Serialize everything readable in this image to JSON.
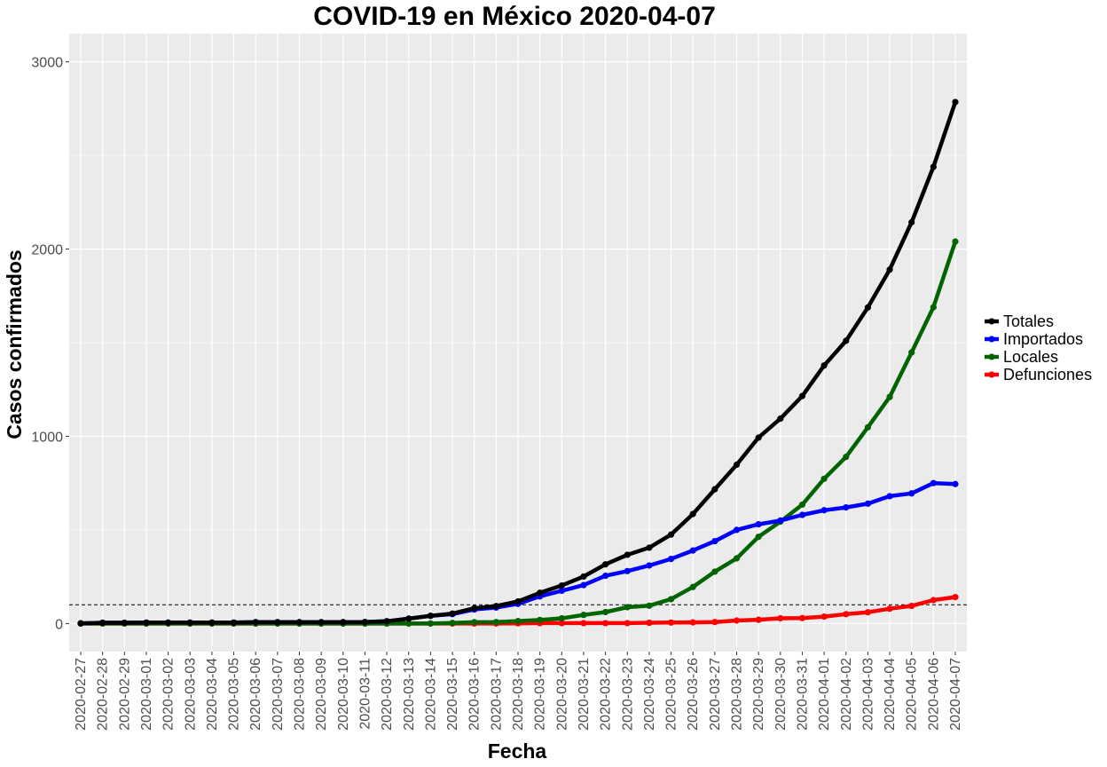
{
  "chart_data": {
    "type": "line",
    "title": "COVID-19 en México 2020-04-07",
    "xlabel": "Fecha",
    "ylabel": "Casos confirmados",
    "ylim": [
      -150,
      3150
    ],
    "yticks": [
      0,
      1000,
      2000,
      3000
    ],
    "grid": true,
    "legend_position": "right",
    "reference_line": {
      "y": 100,
      "style": "dashed"
    },
    "categories": [
      "2020-02-27",
      "2020-02-28",
      "2020-02-29",
      "2020-03-01",
      "2020-03-02",
      "2020-03-03",
      "2020-03-04",
      "2020-03-05",
      "2020-03-06",
      "2020-03-07",
      "2020-03-08",
      "2020-03-09",
      "2020-03-10",
      "2020-03-11",
      "2020-03-12",
      "2020-03-13",
      "2020-03-14",
      "2020-03-15",
      "2020-03-16",
      "2020-03-17",
      "2020-03-18",
      "2020-03-19",
      "2020-03-20",
      "2020-03-21",
      "2020-03-22",
      "2020-03-23",
      "2020-03-24",
      "2020-03-25",
      "2020-03-26",
      "2020-03-27",
      "2020-03-28",
      "2020-03-29",
      "2020-03-30",
      "2020-03-31",
      "2020-04-01",
      "2020-04-02",
      "2020-04-03",
      "2020-04-04",
      "2020-04-05",
      "2020-04-06",
      "2020-04-07"
    ],
    "series": [
      {
        "name": "Totales",
        "color": "#000000",
        "values": [
          1,
          4,
          4,
          5,
          5,
          5,
          5,
          5,
          7,
          7,
          7,
          7,
          7,
          8,
          12,
          26,
          41,
          53,
          82,
          93,
          118,
          164,
          203,
          251,
          316,
          367,
          405,
          475,
          585,
          717,
          848,
          993,
          1094,
          1215,
          1378,
          1510,
          1688,
          1890,
          2143,
          2439,
          2785
        ]
      },
      {
        "name": "Importados",
        "color": "#0000ff",
        "values": [
          1,
          4,
          4,
          5,
          5,
          5,
          5,
          5,
          7,
          7,
          7,
          7,
          7,
          8,
          12,
          26,
          41,
          50,
          75,
          85,
          105,
          145,
          175,
          205,
          255,
          280,
          310,
          345,
          390,
          440,
          500,
          530,
          550,
          580,
          605,
          620,
          640,
          680,
          695,
          750,
          745
        ]
      },
      {
        "name": "Locales",
        "color": "#006400",
        "values": [
          0,
          0,
          0,
          0,
          0,
          0,
          0,
          0,
          0,
          0,
          0,
          0,
          0,
          0,
          0,
          0,
          0,
          3,
          7,
          8,
          13,
          19,
          28,
          46,
          61,
          87,
          95,
          130,
          195,
          277,
          348,
          463,
          544,
          635,
          773,
          890,
          1048,
          1210,
          1448,
          1689,
          2040
        ]
      },
      {
        "name": "Defunciones",
        "color": "#ff0000",
        "values": [
          0,
          0,
          0,
          0,
          0,
          0,
          0,
          0,
          0,
          0,
          0,
          0,
          0,
          0,
          0,
          0,
          0,
          0,
          0,
          0,
          1,
          2,
          2,
          2,
          2,
          2,
          4,
          5,
          6,
          8,
          16,
          20,
          28,
          29,
          37,
          50,
          60,
          79,
          94,
          125,
          141
        ]
      }
    ]
  }
}
